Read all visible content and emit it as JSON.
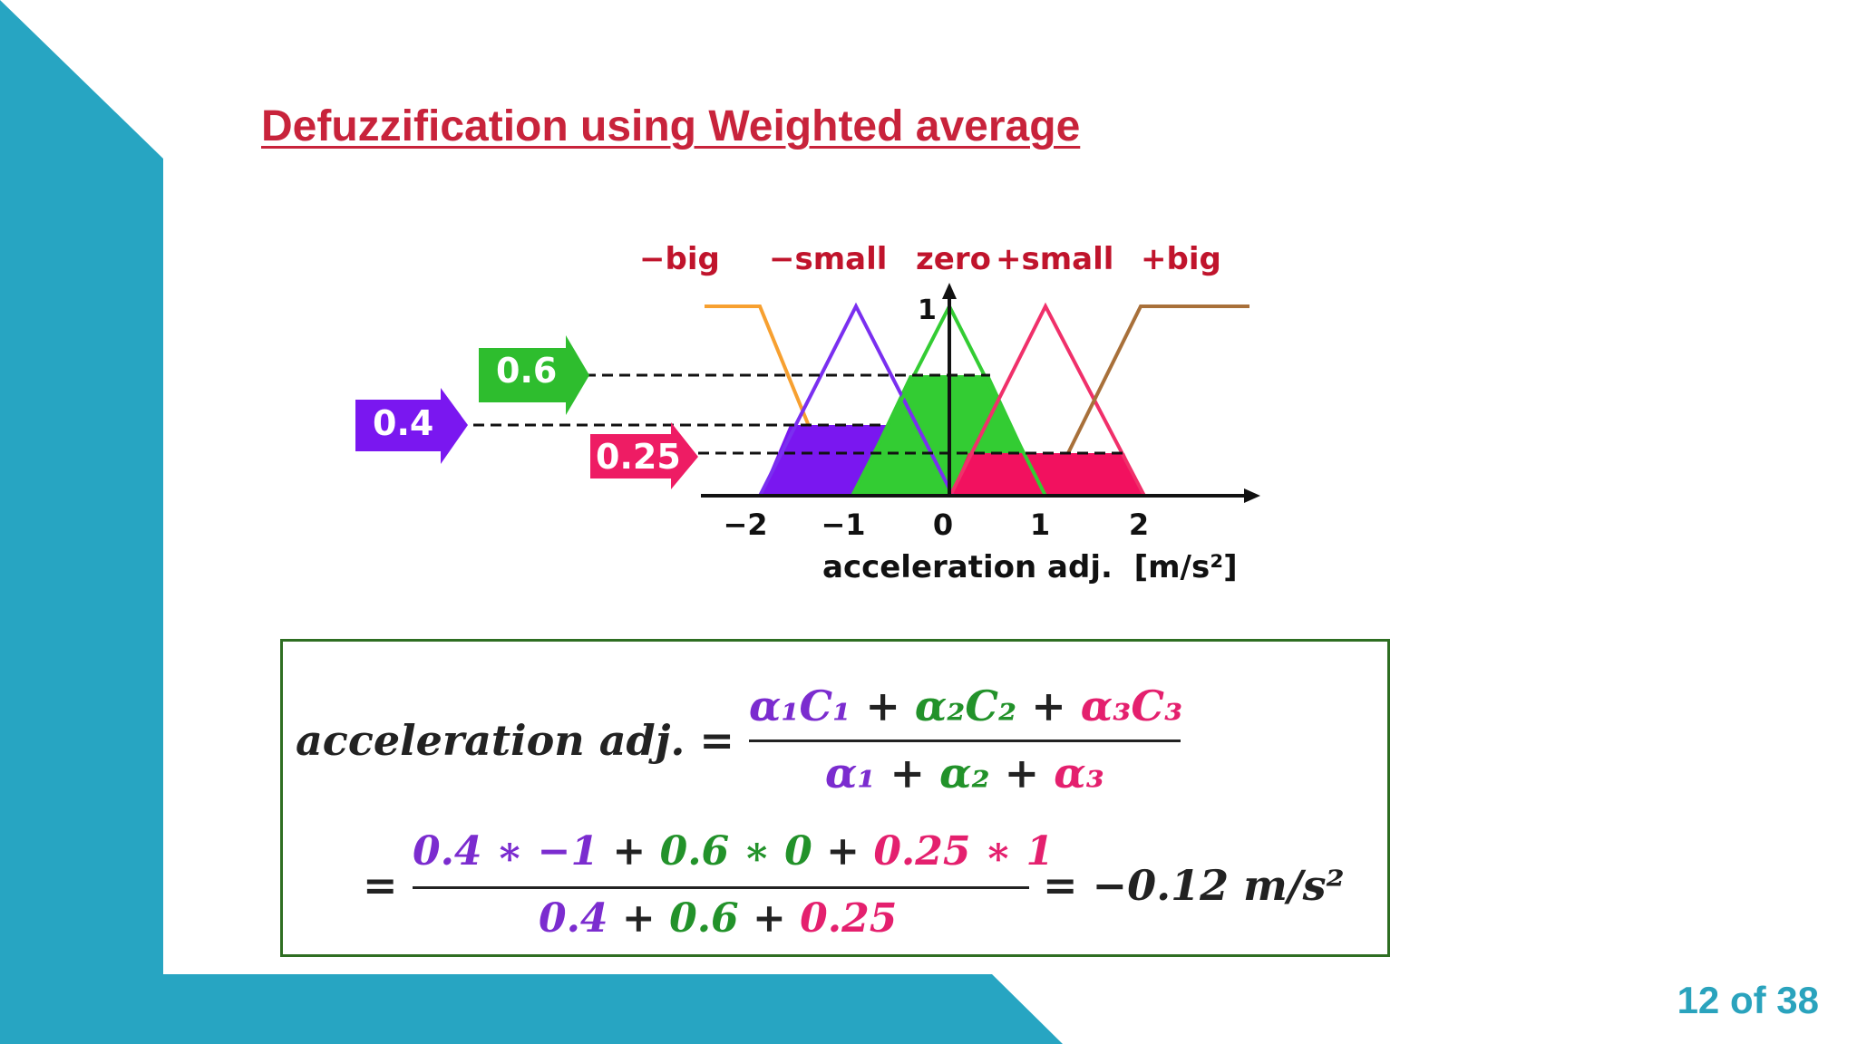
{
  "slide": {
    "title": "Defuzzification using Weighted average",
    "page": "12 of 38",
    "colors": {
      "teal": "#27a5c2",
      "title_red": "#c8233b"
    }
  },
  "diagram": {
    "set_labels": [
      "−big",
      "−small",
      "zero",
      "+small",
      "+big"
    ],
    "axis": {
      "xlabel": "acceleration adj.  [m/s²]",
      "ticks": [
        "−2",
        "−1",
        "0",
        "1",
        "2"
      ],
      "y_top": "1"
    },
    "arrows": [
      {
        "label": "0.6",
        "color": "#2ebd2e"
      },
      {
        "label": "0.4",
        "color": "#7a17f0"
      },
      {
        "label": "0.25",
        "color": "#ee1c64"
      }
    ],
    "curve_colors": {
      "neg_big": "#f7a030",
      "neg_small": "#7a2ff0",
      "zero": "#33cc33",
      "pos_small": "#f0306a",
      "pos_big": "#a8703a"
    }
  },
  "formula": {
    "lhs": "acceleration adj. =",
    "num1": [
      "α₁C₁",
      " + ",
      "α₂C₂",
      " + ",
      "α₃C₃"
    ],
    "den1": [
      "α₁",
      " + ",
      "α₂",
      " + ",
      "α₃"
    ],
    "eq2": "=",
    "num2": [
      "0.4 ∗ −1",
      " + ",
      "0.6 ∗ 0",
      " + ",
      "0.25 ∗ 1"
    ],
    "den2": [
      "0.4",
      " + ",
      "0.6",
      " + ",
      "0.25"
    ],
    "result": "= −0.12 m/s²"
  }
}
